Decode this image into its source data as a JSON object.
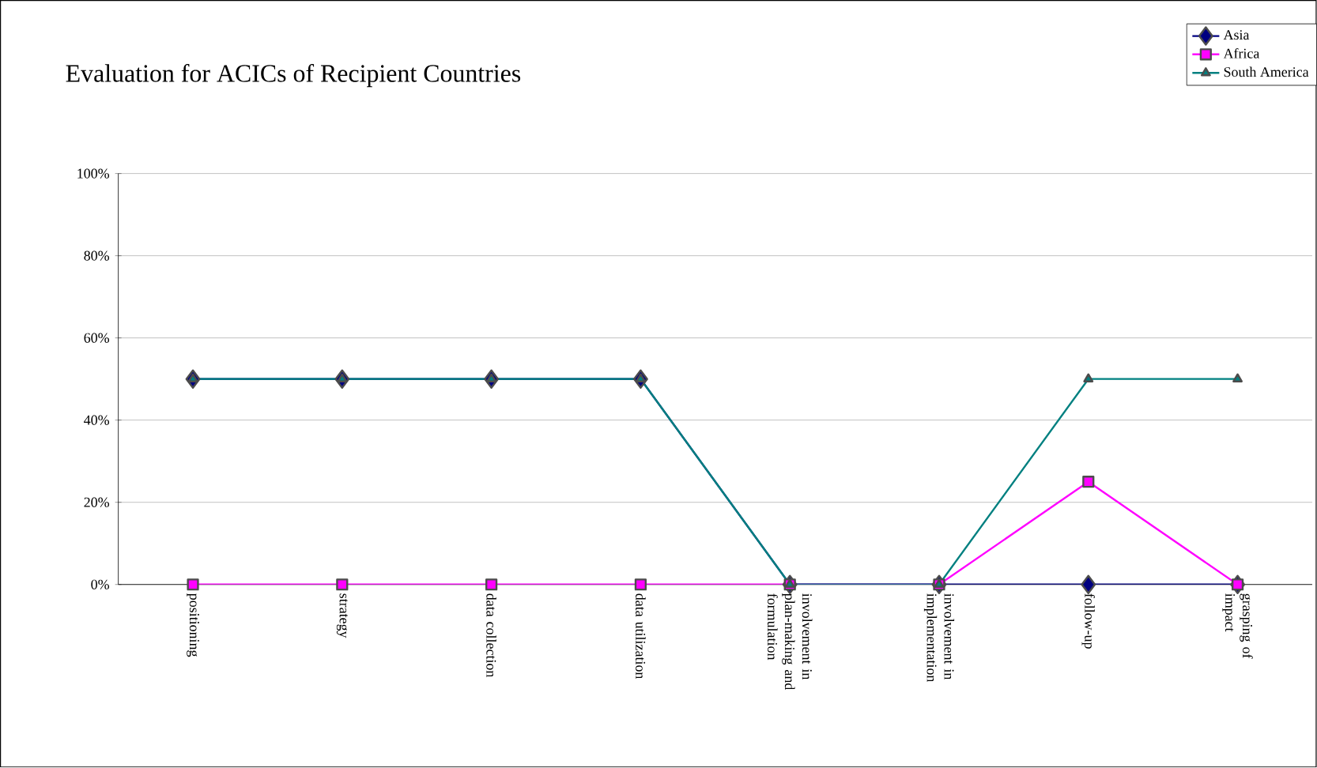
{
  "chart_data": {
    "type": "line",
    "title": "Evaluation for ACICs of Recipient Countries",
    "categories": [
      "positioning",
      "strategy",
      "data collection",
      "data utilization",
      "involvement in plan-making and formulation",
      "involvement in implementation",
      "follow-up",
      "grasping of impact"
    ],
    "series": [
      {
        "name": "Asia",
        "color": "#000080",
        "marker": "diamond",
        "values": [
          50,
          50,
          50,
          50,
          0,
          0,
          0,
          0
        ]
      },
      {
        "name": "Africa",
        "color": "#ff00ff",
        "marker": "square",
        "values": [
          0,
          0,
          0,
          0,
          0,
          0,
          25,
          0
        ]
      },
      {
        "name": "South America",
        "color": "#008080",
        "marker": "triangle",
        "values": [
          50,
          50,
          50,
          50,
          0,
          0,
          50,
          50
        ]
      }
    ],
    "ylim": [
      0,
      100
    ],
    "yticks": [
      {
        "value": 0,
        "label": "0%"
      },
      {
        "value": 20,
        "label": "20%"
      },
      {
        "value": 40,
        "label": "40%"
      },
      {
        "value": 60,
        "label": "60%"
      },
      {
        "value": 80,
        "label": "80%"
      },
      {
        "value": 100,
        "label": "100%"
      }
    ],
    "grid": "y",
    "legend": "top right"
  }
}
